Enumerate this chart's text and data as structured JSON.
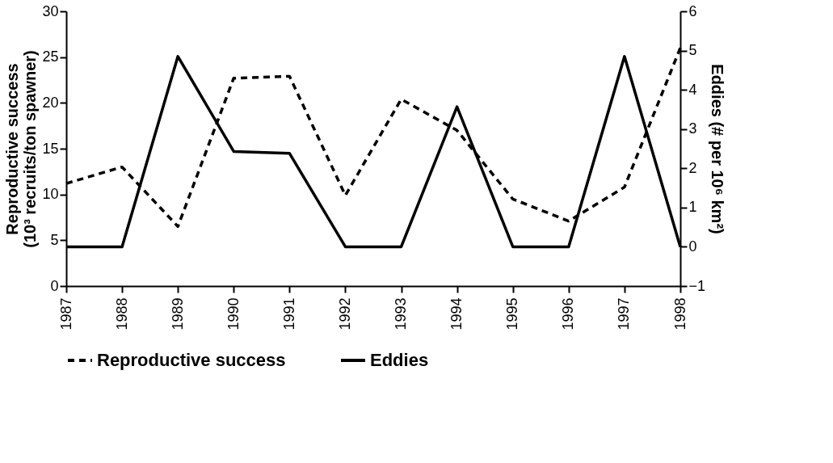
{
  "chart_data": {
    "type": "line",
    "categories": [
      "1987",
      "1988",
      "1989",
      "1990",
      "1991",
      "1992",
      "1993",
      "1994",
      "1995",
      "1996",
      "1997",
      "1998"
    ],
    "series": [
      {
        "name": "Reproductive success",
        "color": "#000000",
        "line_style": "dashed",
        "values": [
          11.2,
          13.0,
          6.5,
          22.7,
          22.9,
          9.9,
          20.4,
          17.0,
          9.5,
          7.1,
          10.8,
          26.0
        ]
      },
      {
        "name": "Eddies",
        "color": "#000000",
        "line_style": "solid",
        "axis": "y2",
        "values": [
          0,
          0,
          4.85,
          2.43,
          2.38,
          0,
          0,
          3.57,
          0,
          0,
          4.85,
          0
        ]
      }
    ],
    "ylabel": "Reproductive success\n(10³ recruits/ton spawner)",
    "y2label": "Eddies (# per 10⁶ km²)",
    "ylim": [
      0,
      30
    ],
    "yticks": [
      0,
      5,
      10,
      15,
      20,
      25,
      30
    ],
    "y2lim": [
      -1,
      6
    ],
    "y2ticks": [
      -1,
      0,
      1,
      2,
      3,
      4,
      5,
      6
    ],
    "grid": false,
    "legend": "bottom"
  }
}
